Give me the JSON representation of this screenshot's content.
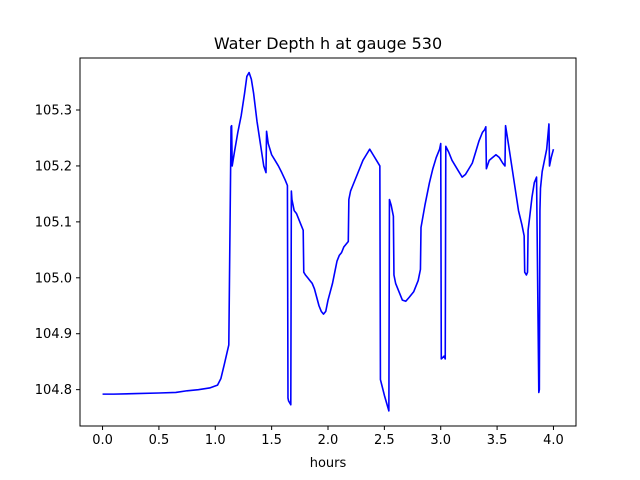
{
  "chart_data": {
    "type": "line",
    "title": "Water Depth h at gauge 530",
    "xlabel": "hours",
    "ylabel": "",
    "xlim": [
      -0.2,
      4.2
    ],
    "ylim": [
      104.735,
      105.393
    ],
    "x_ticks": [
      0.0,
      0.5,
      1.0,
      1.5,
      2.0,
      2.5,
      3.0,
      3.5,
      4.0
    ],
    "x_tick_labels": [
      "0.0",
      "0.5",
      "1.0",
      "1.5",
      "2.0",
      "2.5",
      "3.0",
      "3.5",
      "4.0"
    ],
    "y_ticks": [
      104.8,
      104.9,
      105.0,
      105.1,
      105.2,
      105.3
    ],
    "y_tick_labels": [
      "104.8",
      "104.9",
      "105.0",
      "105.1",
      "105.2",
      "105.3"
    ],
    "grid": false,
    "series": [
      {
        "color": "#0000ff",
        "x": [
          0.0,
          0.1,
          0.3,
          0.5,
          0.65,
          0.75,
          0.85,
          0.95,
          1.02,
          1.05,
          1.08,
          1.12,
          1.14,
          1.145,
          1.15,
          1.17,
          1.2,
          1.23,
          1.26,
          1.28,
          1.3,
          1.32,
          1.34,
          1.37,
          1.4,
          1.43,
          1.45,
          1.455,
          1.47,
          1.5,
          1.53,
          1.56,
          1.59,
          1.62,
          1.64,
          1.645,
          1.65,
          1.67,
          1.675,
          1.68,
          1.69,
          1.7,
          1.72,
          1.74,
          1.76,
          1.78,
          1.785,
          1.8,
          1.82,
          1.84,
          1.86,
          1.88,
          1.9,
          1.92,
          1.94,
          1.96,
          1.98,
          2.0,
          2.02,
          2.04,
          2.06,
          2.08,
          2.1,
          2.12,
          2.14,
          2.16,
          2.18,
          2.185,
          2.2,
          2.22,
          2.25,
          2.28,
          2.31,
          2.34,
          2.37,
          2.4,
          2.43,
          2.46,
          2.465,
          2.5,
          2.54,
          2.545,
          2.56,
          2.58,
          2.585,
          2.6,
          2.63,
          2.66,
          2.69,
          2.72,
          2.76,
          2.8,
          2.82,
          2.825,
          2.86,
          2.9,
          2.93,
          2.96,
          2.99,
          3.0,
          3.005,
          3.03,
          3.04,
          3.045,
          3.07,
          3.1,
          3.13,
          3.16,
          3.19,
          3.22,
          3.25,
          3.28,
          3.31,
          3.34,
          3.37,
          3.39,
          3.4,
          3.405,
          3.43,
          3.46,
          3.49,
          3.52,
          3.55,
          3.57,
          3.575,
          3.6,
          3.63,
          3.66,
          3.69,
          3.72,
          3.74,
          3.745,
          3.76,
          3.77,
          3.775,
          3.79,
          3.81,
          3.83,
          3.85,
          3.87,
          3.875,
          3.88,
          3.885,
          3.9,
          3.92,
          3.94,
          3.96,
          3.965,
          3.98,
          4.0
        ],
        "y": [
          104.792,
          104.792,
          104.793,
          104.794,
          104.795,
          104.798,
          104.8,
          104.803,
          104.808,
          104.82,
          104.845,
          104.88,
          105.27,
          105.272,
          105.2,
          105.225,
          105.26,
          105.29,
          105.33,
          105.36,
          105.367,
          105.355,
          105.33,
          105.28,
          105.24,
          105.2,
          105.188,
          105.262,
          105.24,
          105.22,
          105.21,
          105.2,
          105.188,
          105.175,
          105.165,
          104.785,
          104.78,
          104.773,
          105.155,
          105.14,
          105.13,
          105.12,
          105.115,
          105.105,
          105.095,
          105.085,
          105.01,
          105.005,
          105.0,
          104.995,
          104.99,
          104.98,
          104.965,
          104.95,
          104.94,
          104.935,
          104.94,
          104.96,
          104.975,
          104.99,
          105.01,
          105.03,
          105.04,
          105.045,
          105.055,
          105.06,
          105.065,
          105.14,
          105.155,
          105.165,
          105.18,
          105.195,
          105.21,
          105.22,
          105.23,
          105.22,
          105.21,
          105.2,
          104.818,
          104.79,
          104.762,
          105.14,
          105.13,
          105.11,
          105.005,
          104.99,
          104.975,
          104.96,
          104.958,
          104.965,
          104.975,
          104.995,
          105.015,
          105.09,
          105.13,
          105.17,
          105.195,
          105.215,
          105.23,
          105.24,
          104.855,
          104.86,
          104.855,
          105.235,
          105.225,
          105.21,
          105.2,
          105.19,
          105.18,
          105.185,
          105.195,
          105.205,
          105.225,
          105.245,
          105.26,
          105.265,
          105.27,
          105.195,
          105.21,
          105.215,
          105.22,
          105.215,
          105.205,
          105.2,
          105.272,
          105.24,
          105.2,
          105.16,
          105.12,
          105.095,
          105.075,
          105.01,
          105.005,
          105.01,
          105.085,
          105.11,
          105.145,
          105.17,
          105.18,
          104.795,
          104.8,
          105.12,
          105.16,
          105.19,
          105.21,
          105.23,
          105.275,
          105.2,
          105.215,
          105.23
        ]
      }
    ]
  }
}
